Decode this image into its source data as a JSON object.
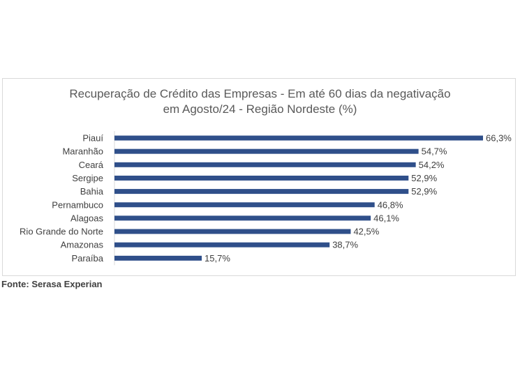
{
  "chart_data": {
    "type": "bar",
    "orientation": "horizontal",
    "title": "Recuperação de Crédito das Empresas - Em até 60 dias da negativação em Agosto/24 - Região Nordeste (%)",
    "title_lines": [
      "Recuperação de Crédito das Empresas - Em até 60 dias da negativação",
      "em Agosto/24 - Região Nordeste (%)"
    ],
    "categories": [
      "Piauí",
      "Maranhão",
      "Ceará",
      "Sergipe",
      "Bahia",
      "Pernambuco",
      "Alagoas",
      "Rio Grande do Norte",
      "Amazonas",
      "Paraíba"
    ],
    "values": [
      66.3,
      54.7,
      54.2,
      52.9,
      52.9,
      46.8,
      46.1,
      42.5,
      38.7,
      15.7
    ],
    "value_labels": [
      "66,3%",
      "54,7%",
      "54,2%",
      "52,9%",
      "52,9%",
      "46,8%",
      "46,1%",
      "42,5%",
      "38,7%",
      "15,7%"
    ],
    "xlabel": "",
    "ylabel": "",
    "xlim": [
      0,
      66.3
    ],
    "grid": false,
    "bar_color": "#2f4f8a"
  },
  "source": "Fonte: Serasa Experian"
}
